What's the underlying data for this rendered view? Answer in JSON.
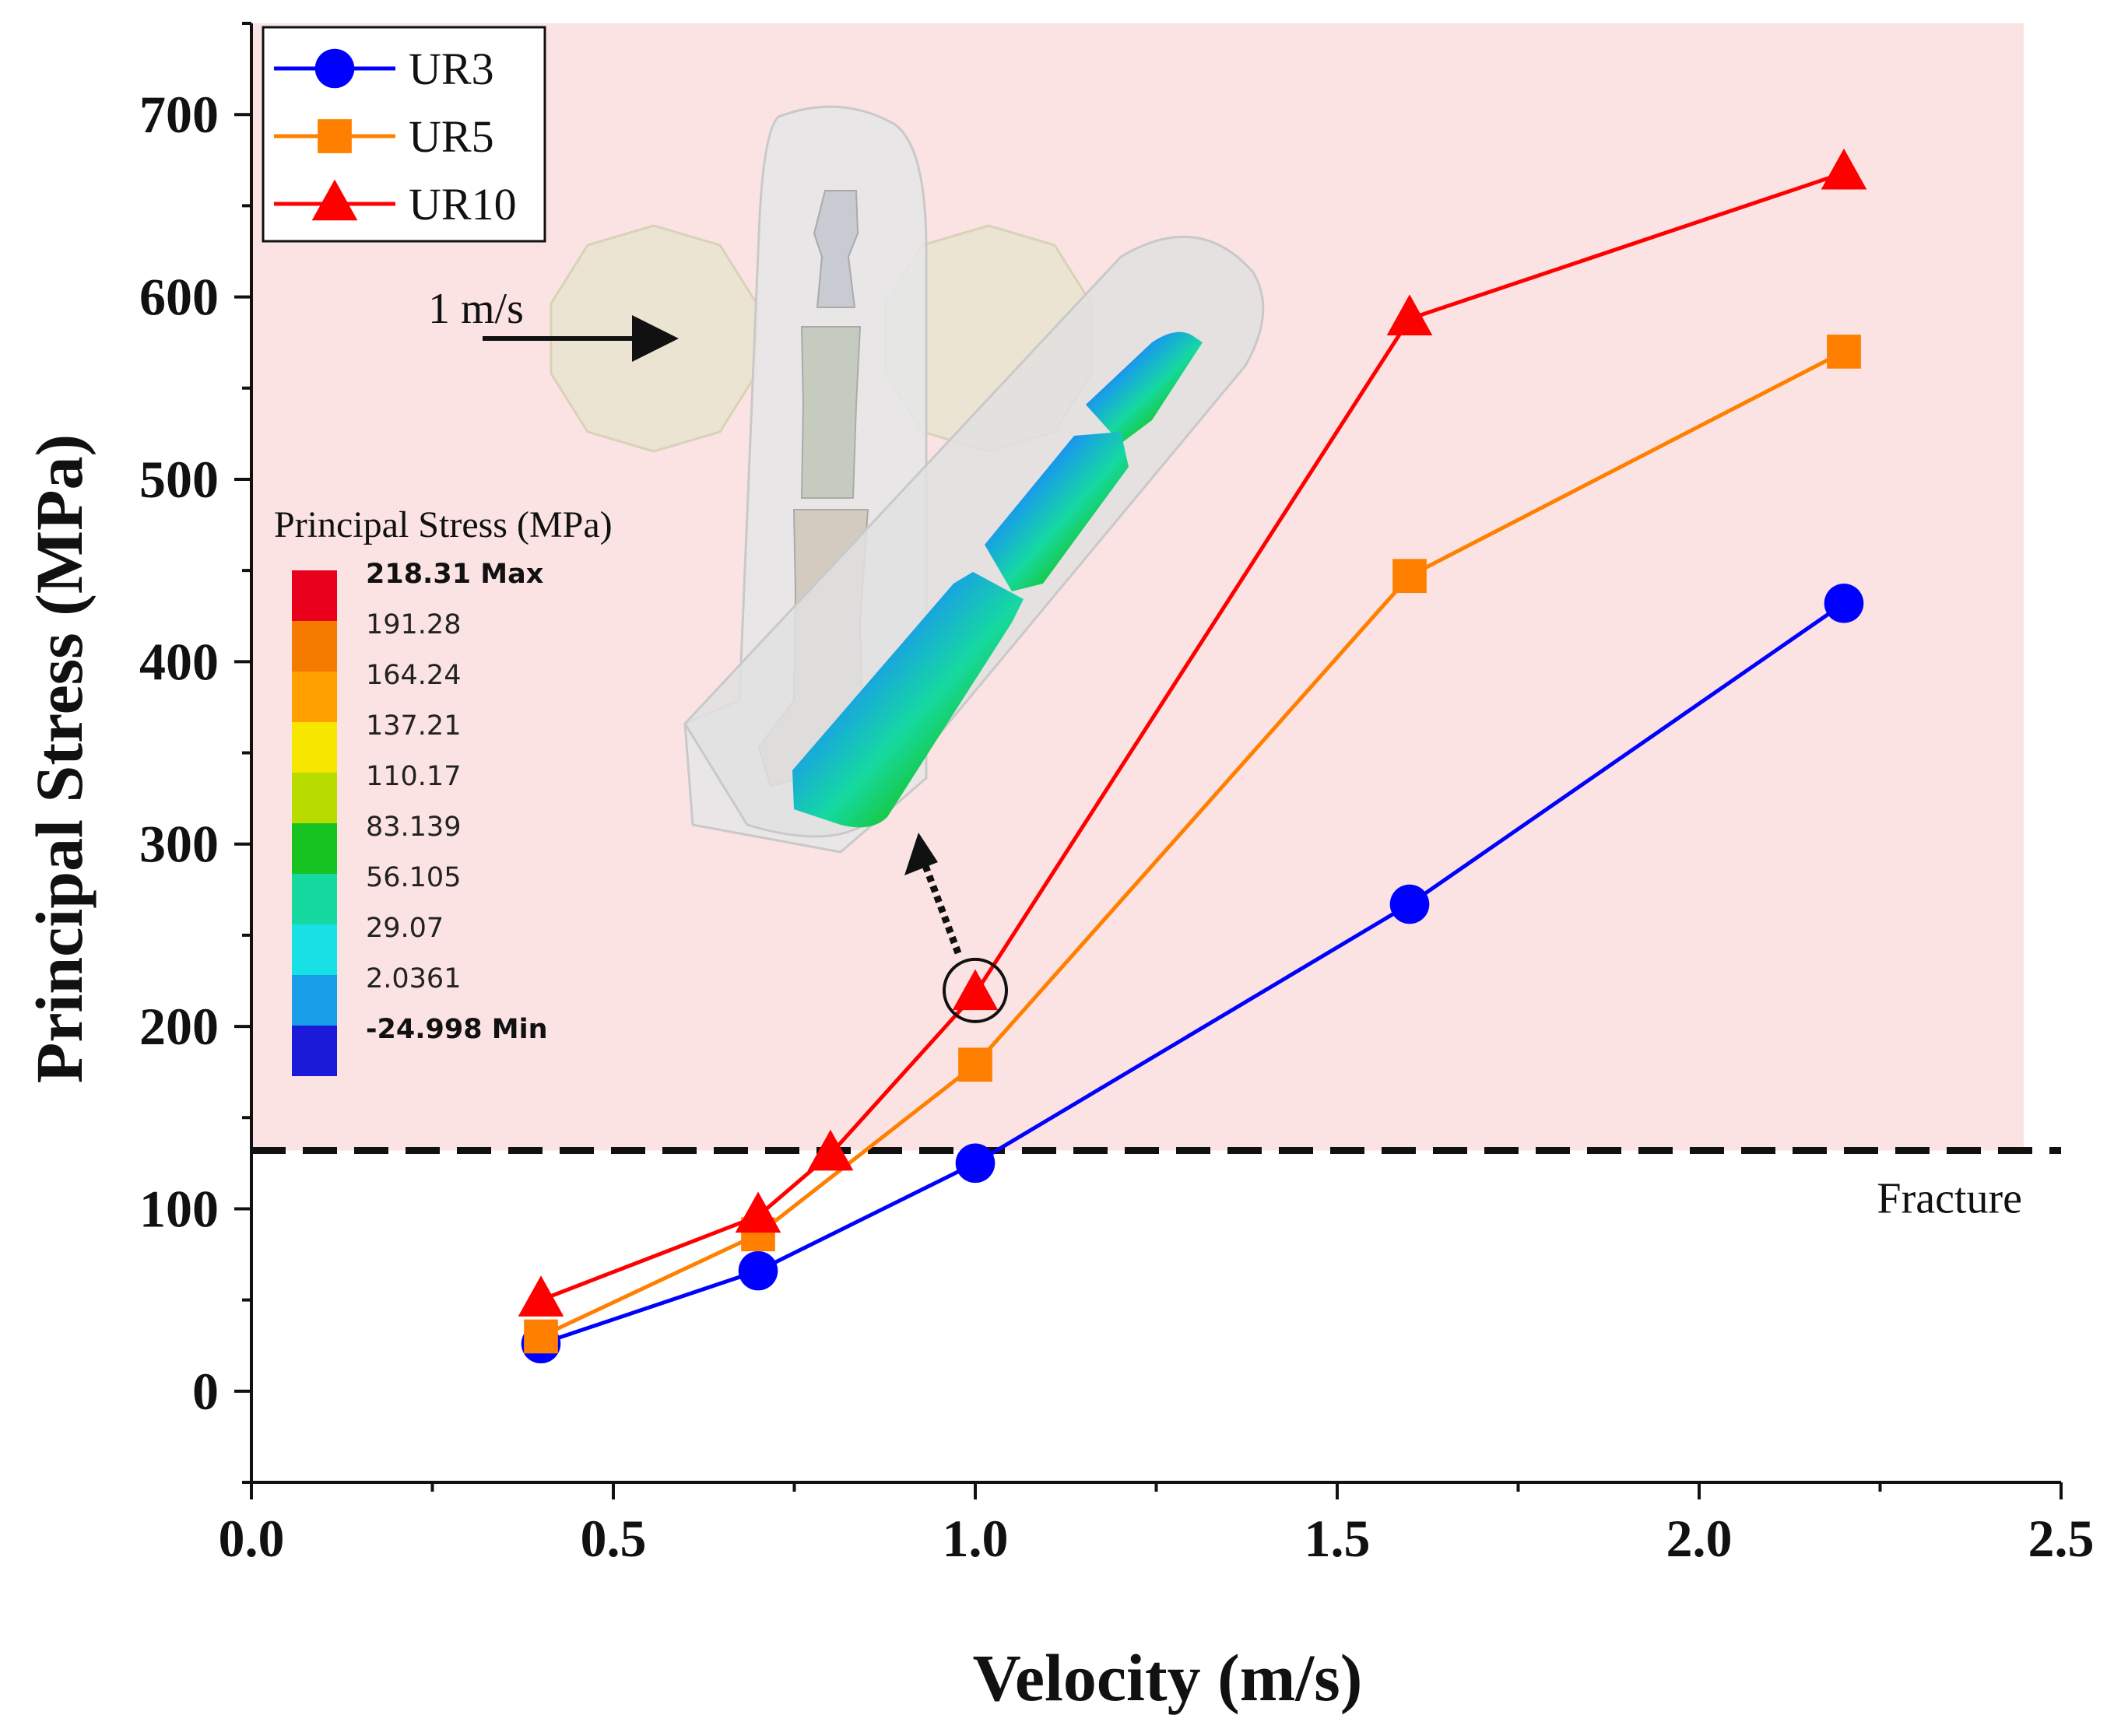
{
  "chart_data": {
    "type": "line",
    "xlabel": "Velocity (m/s)",
    "ylabel": "Principal Stress (MPa)",
    "xlim": [
      0.0,
      2.5
    ],
    "ylim": [
      -50,
      750
    ],
    "x_ticks": [
      "0.0",
      "0.5",
      "1.0",
      "1.5",
      "2.0",
      "2.5"
    ],
    "y_ticks": [
      "0",
      "100",
      "200",
      "300",
      "400",
      "500",
      "600",
      "700"
    ],
    "grid": false,
    "legend_position": "top-left",
    "series": [
      {
        "name": "UR3",
        "marker": "circle",
        "color": "#0000ff",
        "x": [
          0.4,
          0.7,
          1.0,
          1.6,
          2.2
        ],
        "values": [
          26,
          66,
          125,
          267,
          432
        ]
      },
      {
        "name": "UR5",
        "marker": "square",
        "color": "#ff8000",
        "x": [
          0.4,
          0.7,
          1.0,
          1.6,
          2.2
        ],
        "values": [
          30,
          86,
          179,
          447,
          570
        ]
      },
      {
        "name": "UR10",
        "marker": "triangle",
        "color": "#ff0000",
        "x": [
          0.4,
          0.7,
          0.8,
          1.0,
          1.6,
          2.2
        ],
        "values": [
          50,
          96,
          130,
          218,
          588,
          668
        ]
      }
    ],
    "threshold": {
      "value": 132,
      "label": "Fracture"
    },
    "highlight_point": {
      "series": "UR10",
      "x": 1.0,
      "y": 218
    }
  },
  "inset": {
    "velocity_label": "1 m/s",
    "colorbar": {
      "title": "Principal Stress (MPa)",
      "labels": [
        "218.31 Max",
        "191.28",
        "164.24",
        "137.21",
        "110.17",
        "83.139",
        "56.105",
        "29.07",
        "2.0361",
        "-24.998 Min"
      ],
      "colors": [
        "#e8001c",
        "#f47a00",
        "#ff9f00",
        "#f6e600",
        "#b8dc00",
        "#17c321",
        "#16d9a0",
        "#18e1e5",
        "#189ee8",
        "#1a1ad8"
      ]
    }
  },
  "colors": {
    "fracture_zone": "#fbe3e3",
    "axis": "#111111"
  }
}
